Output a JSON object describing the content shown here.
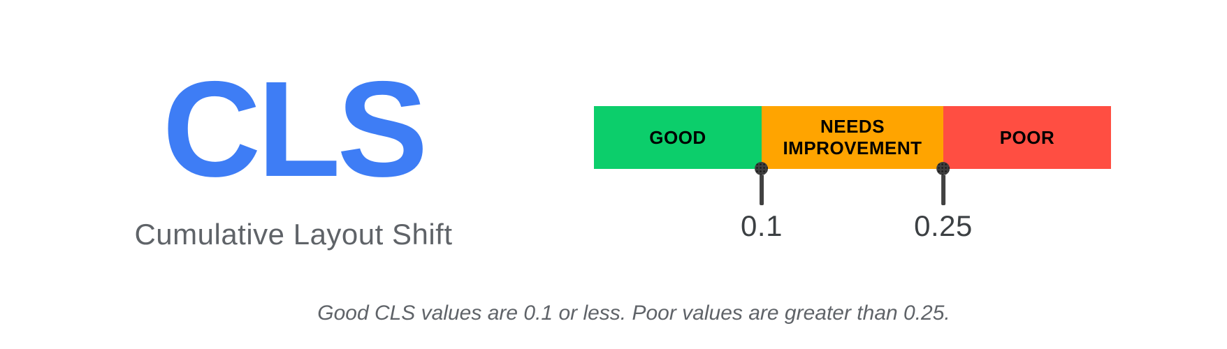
{
  "page": {
    "background_color": "#ffffff"
  },
  "metric": {
    "abbreviation": "CLS",
    "abbreviation_color": "#3E7DF5",
    "full_name": "Cumulative Layout Shift",
    "full_name_color": "#5F6368"
  },
  "scale": {
    "segments": [
      {
        "label": "GOOD",
        "color": "#0CCE6B",
        "text_color": "#000000"
      },
      {
        "label": "NEEDS IMPROVEMENT",
        "color": "#FFA400",
        "text_color": "#000000"
      },
      {
        "label": "POOR",
        "color": "#FF4E42",
        "text_color": "#000000"
      }
    ],
    "thresholds": [
      {
        "value": "0.1"
      },
      {
        "value": "0.25"
      }
    ],
    "marker_color": "#3E3E3E",
    "threshold_text_color": "#3C4043"
  },
  "caption": {
    "text": "Good CLS values are 0.1 or less. Poor values are greater than 0.25."
  }
}
